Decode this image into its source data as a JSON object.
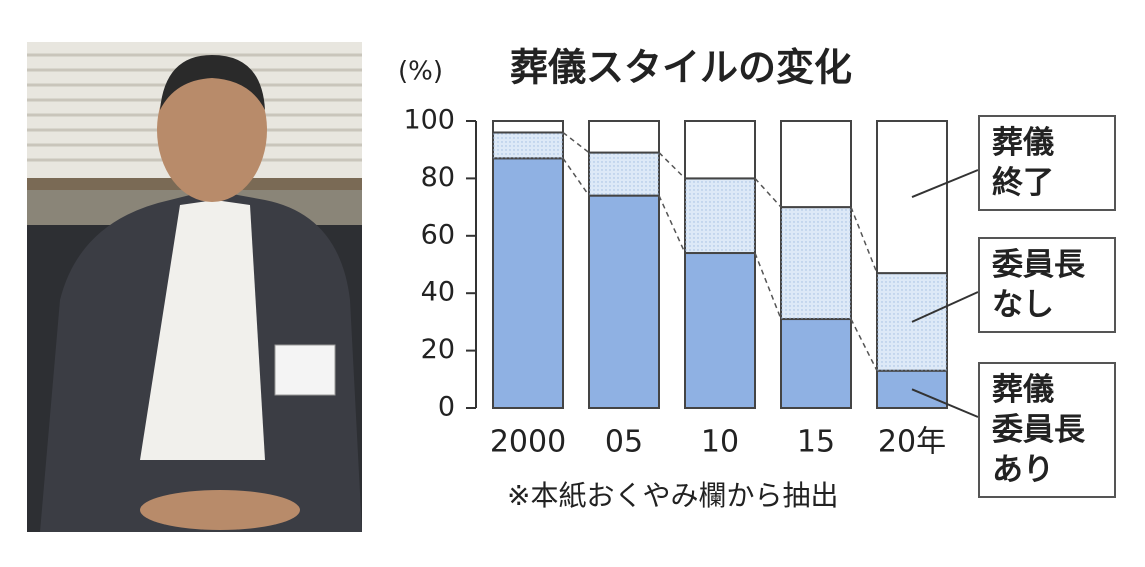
{
  "chart_data": {
    "type": "stacked_bar",
    "title": "葬儀スタイルの変化",
    "y_label": "(%)",
    "note": "※本紙おくやみ欄から抽出",
    "categories": [
      "2000",
      "05",
      "10",
      "15",
      "20年"
    ],
    "series": [
      {
        "name": "葬儀\n委員長\nあり",
        "color": "#8fb1e3",
        "values": [
          87,
          74,
          54,
          31,
          13
        ]
      },
      {
        "name": "委員長\nなし",
        "color": "#dde9f7",
        "values": [
          9,
          15,
          26,
          39,
          34
        ]
      },
      {
        "name": "葬儀\n終了",
        "color": "#ffffff",
        "values": [
          4,
          11,
          20,
          30,
          53
        ]
      }
    ],
    "ylim": [
      0,
      100
    ],
    "yticks": [
      0,
      20,
      40,
      60,
      80,
      100
    ],
    "grid": false,
    "legend_position": "right"
  }
}
